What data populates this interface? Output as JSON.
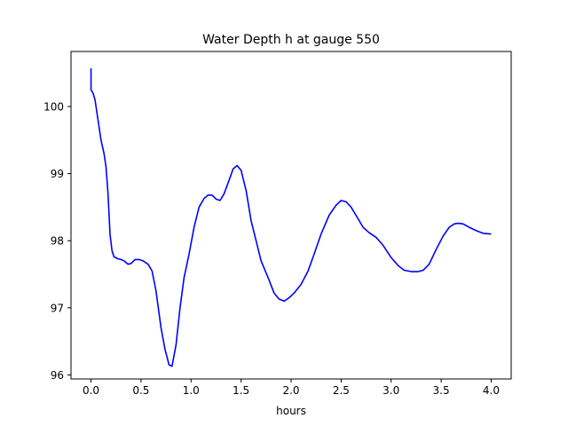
{
  "chart_data": {
    "type": "line",
    "title": "Water Depth h at gauge 550",
    "xlabel": "hours",
    "ylabel": "",
    "xlim": [
      -0.2,
      4.2
    ],
    "ylim": [
      95.94,
      100.82
    ],
    "xticks": [
      0.0,
      0.5,
      1.0,
      1.5,
      2.0,
      2.5,
      3.0,
      3.5,
      4.0
    ],
    "xtick_labels": [
      "0.0",
      "0.5",
      "1.0",
      "1.5",
      "2.0",
      "2.5",
      "3.0",
      "3.5",
      "4.0"
    ],
    "yticks": [
      96,
      97,
      98,
      99,
      100
    ],
    "ytick_labels": [
      "96",
      "97",
      "98",
      "99",
      "100"
    ],
    "grid": false,
    "series": [
      {
        "color": "#0000ff",
        "points": [
          [
            0.0,
            100.57
          ],
          [
            0.0,
            100.25
          ],
          [
            0.02,
            100.2
          ],
          [
            0.04,
            100.1
          ],
          [
            0.07,
            99.8
          ],
          [
            0.1,
            99.5
          ],
          [
            0.13,
            99.3
          ],
          [
            0.15,
            99.1
          ],
          [
            0.17,
            98.7
          ],
          [
            0.19,
            98.1
          ],
          [
            0.21,
            97.85
          ],
          [
            0.23,
            97.76
          ],
          [
            0.27,
            97.73
          ],
          [
            0.3,
            97.72
          ],
          [
            0.33,
            97.7
          ],
          [
            0.37,
            97.65
          ],
          [
            0.4,
            97.66
          ],
          [
            0.44,
            97.72
          ],
          [
            0.48,
            97.72
          ],
          [
            0.52,
            97.7
          ],
          [
            0.57,
            97.65
          ],
          [
            0.61,
            97.55
          ],
          [
            0.65,
            97.25
          ],
          [
            0.7,
            96.7
          ],
          [
            0.74,
            96.38
          ],
          [
            0.78,
            96.15
          ],
          [
            0.81,
            96.13
          ],
          [
            0.85,
            96.45
          ],
          [
            0.89,
            97.0
          ],
          [
            0.93,
            97.45
          ],
          [
            0.98,
            97.8
          ],
          [
            1.03,
            98.2
          ],
          [
            1.08,
            98.5
          ],
          [
            1.13,
            98.63
          ],
          [
            1.17,
            98.68
          ],
          [
            1.21,
            98.68
          ],
          [
            1.25,
            98.62
          ],
          [
            1.29,
            98.6
          ],
          [
            1.33,
            98.7
          ],
          [
            1.38,
            98.9
          ],
          [
            1.42,
            99.07
          ],
          [
            1.46,
            99.12
          ],
          [
            1.5,
            99.05
          ],
          [
            1.55,
            98.75
          ],
          [
            1.6,
            98.3
          ],
          [
            1.65,
            98.0
          ],
          [
            1.7,
            97.7
          ],
          [
            1.77,
            97.45
          ],
          [
            1.83,
            97.22
          ],
          [
            1.88,
            97.13
          ],
          [
            1.93,
            97.1
          ],
          [
            1.98,
            97.15
          ],
          [
            2.03,
            97.22
          ],
          [
            2.1,
            97.35
          ],
          [
            2.17,
            97.55
          ],
          [
            2.23,
            97.8
          ],
          [
            2.3,
            98.1
          ],
          [
            2.38,
            98.38
          ],
          [
            2.45,
            98.53
          ],
          [
            2.5,
            98.6
          ],
          [
            2.55,
            98.58
          ],
          [
            2.6,
            98.5
          ],
          [
            2.66,
            98.35
          ],
          [
            2.72,
            98.2
          ],
          [
            2.78,
            98.12
          ],
          [
            2.85,
            98.05
          ],
          [
            2.92,
            97.93
          ],
          [
            3.0,
            97.75
          ],
          [
            3.07,
            97.63
          ],
          [
            3.13,
            97.56
          ],
          [
            3.2,
            97.54
          ],
          [
            3.27,
            97.54
          ],
          [
            3.32,
            97.56
          ],
          [
            3.38,
            97.65
          ],
          [
            3.45,
            97.87
          ],
          [
            3.52,
            98.07
          ],
          [
            3.58,
            98.2
          ],
          [
            3.63,
            98.25
          ],
          [
            3.67,
            98.26
          ],
          [
            3.72,
            98.25
          ],
          [
            3.78,
            98.2
          ],
          [
            3.85,
            98.15
          ],
          [
            3.92,
            98.11
          ],
          [
            4.0,
            98.1
          ]
        ]
      }
    ]
  }
}
